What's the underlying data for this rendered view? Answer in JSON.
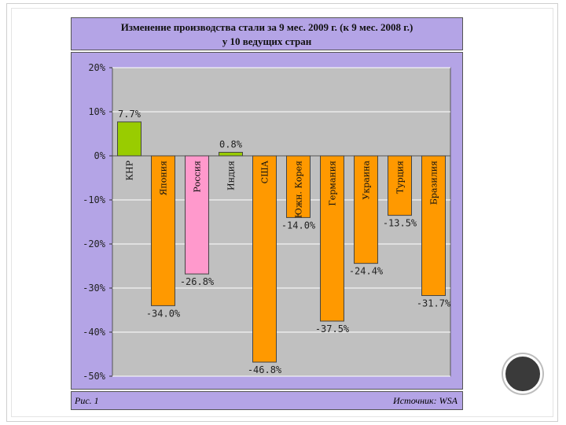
{
  "title_line1": "Изменение производства стали за 9 мес. 2009 г. (к 9 мес. 2008 г.)",
  "title_line2": "у 10 ведущих стран",
  "footer": {
    "figure_label": "Рис. 1",
    "source": "Источник: WSA"
  },
  "colors": {
    "background": "#b4a4e6",
    "plot_area": "#c0c0c0",
    "orange": "#ff9900",
    "green": "#99cc00",
    "pink": "#ff99cc"
  },
  "chart_data": {
    "type": "bar",
    "categories": [
      "КНР",
      "Япония",
      "Россия",
      "Индия",
      "США",
      "Южн. Корея",
      "Германия",
      "Украина",
      "Турция",
      "Бразилия"
    ],
    "values": [
      7.7,
      -34.0,
      -26.8,
      0.8,
      -46.8,
      -14.0,
      -37.5,
      -24.4,
      -13.5,
      -31.7
    ],
    "value_labels": [
      "7.7%",
      "-34.0%",
      "-26.8%",
      "0.8%",
      "-46.8%",
      "-14.0%",
      "-37.5%",
      "-24.4%",
      "-13.5%",
      "-31.7%"
    ],
    "bar_colors": [
      "#99cc00",
      "#ff9900",
      "#ff99cc",
      "#99cc00",
      "#ff9900",
      "#ff9900",
      "#ff9900",
      "#ff9900",
      "#ff9900",
      "#ff9900"
    ],
    "yticks": [
      20,
      10,
      0,
      -10,
      -20,
      -30,
      -40,
      -50
    ],
    "ytick_labels": [
      "20%",
      "10%",
      "0%",
      "-10%",
      "-20%",
      "-30%",
      "-40%",
      "-50%"
    ],
    "ylim": [
      -50,
      20
    ],
    "grid": true
  }
}
